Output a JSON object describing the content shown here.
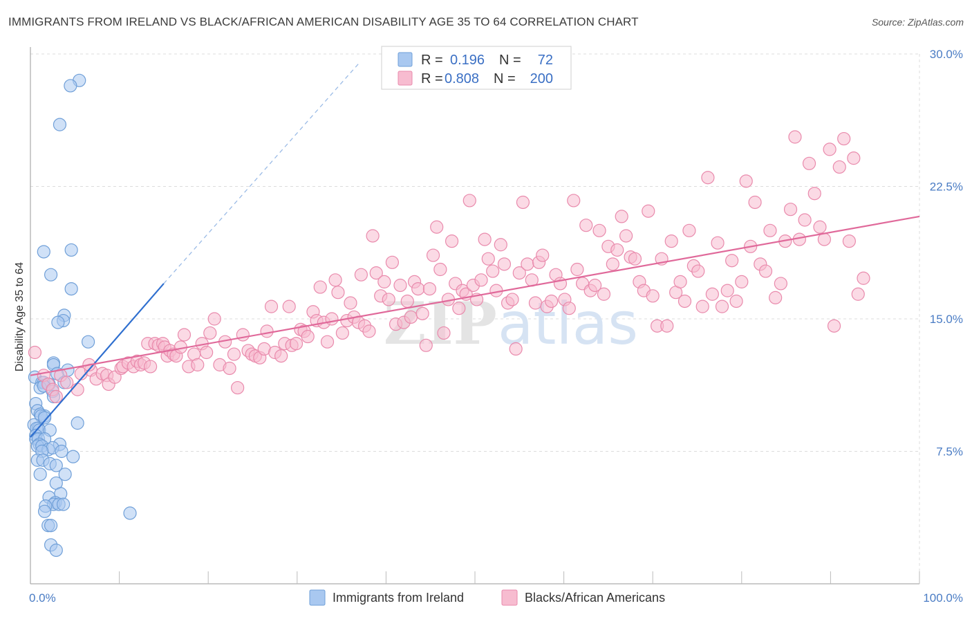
{
  "title": "IMMIGRANTS FROM IRELAND VS BLACK/AFRICAN AMERICAN DISABILITY AGE 35 TO 64 CORRELATION CHART",
  "source": "Source: ZipAtlas.com",
  "watermark": "ZIPatlas",
  "colors": {
    "blue_fill": "#a9c8f0",
    "blue_stroke": "#6f9fd8",
    "blue_line": "#2f6fcf",
    "pink_fill": "#f7bcd0",
    "pink_stroke": "#e98aac",
    "pink_line": "#e0699a",
    "tick_text": "#4a7cc4",
    "grid": "#dcdcdc"
  },
  "chart_data": {
    "type": "scatter",
    "xlabel": "",
    "ylabel": "Disability Age 35 to 64",
    "xlim": [
      0,
      100
    ],
    "ylim": [
      0,
      31
    ],
    "x_tick_labels": [
      "0.0%",
      "100.0%"
    ],
    "y_ticks": [
      7.5,
      15.0,
      22.5,
      30.0
    ],
    "y_tick_labels": [
      "7.5%",
      "15.0%",
      "22.5%",
      "30.0%"
    ],
    "grid": true,
    "legend_placement": "top-center",
    "legend": [
      {
        "r_label": "R =",
        "r_value": "0.196",
        "n_label": "N =",
        "n_value": "72"
      },
      {
        "r_label": "R =",
        "r_value": "0.808",
        "n_label": "N =",
        "n_value": "200"
      }
    ],
    "series": [
      {
        "name": "Immigrants from Ireland",
        "color": "blue",
        "trend": {
          "x0": 0,
          "y0": 8.3,
          "x1": 15,
          "y1": 17.0,
          "dashed_to_x": 37,
          "dashed_to_y": 29.5
        },
        "points": [
          [
            5.5,
            28.5
          ],
          [
            4.5,
            28.2
          ],
          [
            3.3,
            26.0
          ],
          [
            1.5,
            18.8
          ],
          [
            4.6,
            18.9
          ],
          [
            2.3,
            17.5
          ],
          [
            4.6,
            16.7
          ],
          [
            3.8,
            15.2
          ],
          [
            3.7,
            14.9
          ],
          [
            3.1,
            14.8
          ],
          [
            6.5,
            13.7
          ],
          [
            2.6,
            12.5
          ],
          [
            2.6,
            12.4
          ],
          [
            4.2,
            12.1
          ],
          [
            3.0,
            11.9
          ],
          [
            0.5,
            11.7
          ],
          [
            1.3,
            11.4
          ],
          [
            1.5,
            11.4
          ],
          [
            2.1,
            11.3
          ],
          [
            3.8,
            11.4
          ],
          [
            1.1,
            11.1
          ],
          [
            1.5,
            11.2
          ],
          [
            2.5,
            10.9
          ],
          [
            2.6,
            10.6
          ],
          [
            0.6,
            10.2
          ],
          [
            0.8,
            9.8
          ],
          [
            1.1,
            9.6
          ],
          [
            1.6,
            9.5
          ],
          [
            1.2,
            9.5
          ],
          [
            1.6,
            9.4
          ],
          [
            5.3,
            9.1
          ],
          [
            0.4,
            9.0
          ],
          [
            0.9,
            8.8
          ],
          [
            0.7,
            8.8
          ],
          [
            1.0,
            8.7
          ],
          [
            2.2,
            8.7
          ],
          [
            0.6,
            8.4
          ],
          [
            0.6,
            8.2
          ],
          [
            0.9,
            8.2
          ],
          [
            1.6,
            8.2
          ],
          [
            1.0,
            7.9
          ],
          [
            3.3,
            7.9
          ],
          [
            0.8,
            7.8
          ],
          [
            1.3,
            7.8
          ],
          [
            2.0,
            7.6
          ],
          [
            2.5,
            7.7
          ],
          [
            3.5,
            7.5
          ],
          [
            1.3,
            7.5
          ],
          [
            4.8,
            7.2
          ],
          [
            0.8,
            7.0
          ],
          [
            1.4,
            7.0
          ],
          [
            2.2,
            6.8
          ],
          [
            2.9,
            6.7
          ],
          [
            1.1,
            6.2
          ],
          [
            3.9,
            6.2
          ],
          [
            2.9,
            5.7
          ],
          [
            3.4,
            5.1
          ],
          [
            2.1,
            4.9
          ],
          [
            2.8,
            4.6
          ],
          [
            2.6,
            4.5
          ],
          [
            1.7,
            4.4
          ],
          [
            3.2,
            4.5
          ],
          [
            3.7,
            4.5
          ],
          [
            1.6,
            4.1
          ],
          [
            11.2,
            4.0
          ],
          [
            2.0,
            3.3
          ],
          [
            2.3,
            3.3
          ],
          [
            2.3,
            2.2
          ],
          [
            2.9,
            1.9
          ]
        ]
      },
      {
        "name": "Blacks/African Americans",
        "color": "pink",
        "trend": {
          "x0": 0,
          "y0": 11.8,
          "x1": 100,
          "y1": 20.8
        },
        "points": [
          [
            0.5,
            13.1
          ],
          [
            1.5,
            11.8
          ],
          [
            2.0,
            11.3
          ],
          [
            2.5,
            11.0
          ],
          [
            2.9,
            10.6
          ],
          [
            3.4,
            11.8
          ],
          [
            4.1,
            11.4
          ],
          [
            5.3,
            11.0
          ],
          [
            5.7,
            11.9
          ],
          [
            6.8,
            12.1
          ],
          [
            6.6,
            12.4
          ],
          [
            7.4,
            11.6
          ],
          [
            8.1,
            11.9
          ],
          [
            8.6,
            11.8
          ],
          [
            8.8,
            11.3
          ],
          [
            9.5,
            11.7
          ],
          [
            10.2,
            12.2
          ],
          [
            10.4,
            12.3
          ],
          [
            11.0,
            12.5
          ],
          [
            11.6,
            12.3
          ],
          [
            12.0,
            12.6
          ],
          [
            12.4,
            12.4
          ],
          [
            12.8,
            12.5
          ],
          [
            13.5,
            12.3
          ],
          [
            13.2,
            13.6
          ],
          [
            14.0,
            13.6
          ],
          [
            14.4,
            13.5
          ],
          [
            14.9,
            13.6
          ],
          [
            15.1,
            13.4
          ],
          [
            15.4,
            12.9
          ],
          [
            15.7,
            13.2
          ],
          [
            16.1,
            13.0
          ],
          [
            16.4,
            12.9
          ],
          [
            16.9,
            13.4
          ],
          [
            17.3,
            14.1
          ],
          [
            17.8,
            12.3
          ],
          [
            18.4,
            13.0
          ],
          [
            18.8,
            12.4
          ],
          [
            19.3,
            13.6
          ],
          [
            19.8,
            13.1
          ],
          [
            20.2,
            14.2
          ],
          [
            20.7,
            15.0
          ],
          [
            21.3,
            12.4
          ],
          [
            21.9,
            13.7
          ],
          [
            22.4,
            12.2
          ],
          [
            22.9,
            13.0
          ],
          [
            23.3,
            11.1
          ],
          [
            23.9,
            14.1
          ],
          [
            24.5,
            13.2
          ],
          [
            24.9,
            13.0
          ],
          [
            25.3,
            12.9
          ],
          [
            25.8,
            12.8
          ],
          [
            26.3,
            13.3
          ],
          [
            26.6,
            14.3
          ],
          [
            27.1,
            15.7
          ],
          [
            27.5,
            13.1
          ],
          [
            28.2,
            12.9
          ],
          [
            28.6,
            13.6
          ],
          [
            29.1,
            15.7
          ],
          [
            29.4,
            13.5
          ],
          [
            29.9,
            13.6
          ],
          [
            30.4,
            14.4
          ],
          [
            30.8,
            14.3
          ],
          [
            31.2,
            14.0
          ],
          [
            31.8,
            15.4
          ],
          [
            32.2,
            14.9
          ],
          [
            32.6,
            16.8
          ],
          [
            33.0,
            14.8
          ],
          [
            33.4,
            13.7
          ],
          [
            33.9,
            15.0
          ],
          [
            34.3,
            17.2
          ],
          [
            34.6,
            16.5
          ],
          [
            35.1,
            14.2
          ],
          [
            35.6,
            14.9
          ],
          [
            36.0,
            15.9
          ],
          [
            36.4,
            15.1
          ],
          [
            36.9,
            14.8
          ],
          [
            37.2,
            17.5
          ],
          [
            37.6,
            14.6
          ],
          [
            38.1,
            14.3
          ],
          [
            38.5,
            19.7
          ],
          [
            38.9,
            17.6
          ],
          [
            39.4,
            16.3
          ],
          [
            39.8,
            17.1
          ],
          [
            40.3,
            16.1
          ],
          [
            40.7,
            18.2
          ],
          [
            41.1,
            14.7
          ],
          [
            41.6,
            16.9
          ],
          [
            42.0,
            14.8
          ],
          [
            42.4,
            16.0
          ],
          [
            42.8,
            15.1
          ],
          [
            43.2,
            17.1
          ],
          [
            43.6,
            16.7
          ],
          [
            44.1,
            15.3
          ],
          [
            44.5,
            13.5
          ],
          [
            44.9,
            16.7
          ],
          [
            45.3,
            18.6
          ],
          [
            45.7,
            20.2
          ],
          [
            46.1,
            17.8
          ],
          [
            46.5,
            14.2
          ],
          [
            47.0,
            16.1
          ],
          [
            47.4,
            19.4
          ],
          [
            47.8,
            17.0
          ],
          [
            48.2,
            15.6
          ],
          [
            48.6,
            16.6
          ],
          [
            49.0,
            16.4
          ],
          [
            49.4,
            21.7
          ],
          [
            49.8,
            16.9
          ],
          [
            50.2,
            16.1
          ],
          [
            50.7,
            17.2
          ],
          [
            51.1,
            19.5
          ],
          [
            51.5,
            18.4
          ],
          [
            52.0,
            17.7
          ],
          [
            52.4,
            16.6
          ],
          [
            52.9,
            19.2
          ],
          [
            53.3,
            18.1
          ],
          [
            53.7,
            15.9
          ],
          [
            54.2,
            16.1
          ],
          [
            54.6,
            13.3
          ],
          [
            55.0,
            17.6
          ],
          [
            55.4,
            21.6
          ],
          [
            55.9,
            18.1
          ],
          [
            56.4,
            17.2
          ],
          [
            56.8,
            15.9
          ],
          [
            57.2,
            18.2
          ],
          [
            57.6,
            18.6
          ],
          [
            58.1,
            15.7
          ],
          [
            58.6,
            16.0
          ],
          [
            59.1,
            17.5
          ],
          [
            59.6,
            17.0
          ],
          [
            60.1,
            16.1
          ],
          [
            60.6,
            15.6
          ],
          [
            61.1,
            21.7
          ],
          [
            61.5,
            17.8
          ],
          [
            62.1,
            17.0
          ],
          [
            62.5,
            20.3
          ],
          [
            63.0,
            16.6
          ],
          [
            63.5,
            16.9
          ],
          [
            64.0,
            20.0
          ],
          [
            64.5,
            16.4
          ],
          [
            65.0,
            19.1
          ],
          [
            65.5,
            18.1
          ],
          [
            66.0,
            18.9
          ],
          [
            66.5,
            20.8
          ],
          [
            67.0,
            19.7
          ],
          [
            67.5,
            18.5
          ],
          [
            68.0,
            18.4
          ],
          [
            68.5,
            17.1
          ],
          [
            69.0,
            16.6
          ],
          [
            69.5,
            21.1
          ],
          [
            70.0,
            16.3
          ],
          [
            70.5,
            14.6
          ],
          [
            71.0,
            18.4
          ],
          [
            71.6,
            14.6
          ],
          [
            72.1,
            19.4
          ],
          [
            72.6,
            16.5
          ],
          [
            73.1,
            17.1
          ],
          [
            73.6,
            16.0
          ],
          [
            74.1,
            20.0
          ],
          [
            74.6,
            18.0
          ],
          [
            75.1,
            17.7
          ],
          [
            75.6,
            15.7
          ],
          [
            76.2,
            23.0
          ],
          [
            76.7,
            16.4
          ],
          [
            77.3,
            19.3
          ],
          [
            77.8,
            15.7
          ],
          [
            78.4,
            16.6
          ],
          [
            78.9,
            18.3
          ],
          [
            79.4,
            16.0
          ],
          [
            80.0,
            17.1
          ],
          [
            80.5,
            22.8
          ],
          [
            81.0,
            19.1
          ],
          [
            81.5,
            21.6
          ],
          [
            82.1,
            18.1
          ],
          [
            82.7,
            17.7
          ],
          [
            83.2,
            20.0
          ],
          [
            83.8,
            16.2
          ],
          [
            84.4,
            17.0
          ],
          [
            84.9,
            19.4
          ],
          [
            85.5,
            21.2
          ],
          [
            86.0,
            25.3
          ],
          [
            86.5,
            19.5
          ],
          [
            87.1,
            20.6
          ],
          [
            87.6,
            23.8
          ],
          [
            88.2,
            22.1
          ],
          [
            88.8,
            20.2
          ],
          [
            89.3,
            19.5
          ],
          [
            89.9,
            24.6
          ],
          [
            90.4,
            14.6
          ],
          [
            91.0,
            23.6
          ],
          [
            91.5,
            25.2
          ],
          [
            92.1,
            19.4
          ],
          [
            92.6,
            24.1
          ],
          [
            93.1,
            16.4
          ],
          [
            93.7,
            17.3
          ]
        ]
      }
    ]
  },
  "bottom_legend": [
    {
      "label": "Immigrants from Ireland",
      "color": "blue"
    },
    {
      "label": "Blacks/African Americans",
      "color": "pink"
    }
  ]
}
